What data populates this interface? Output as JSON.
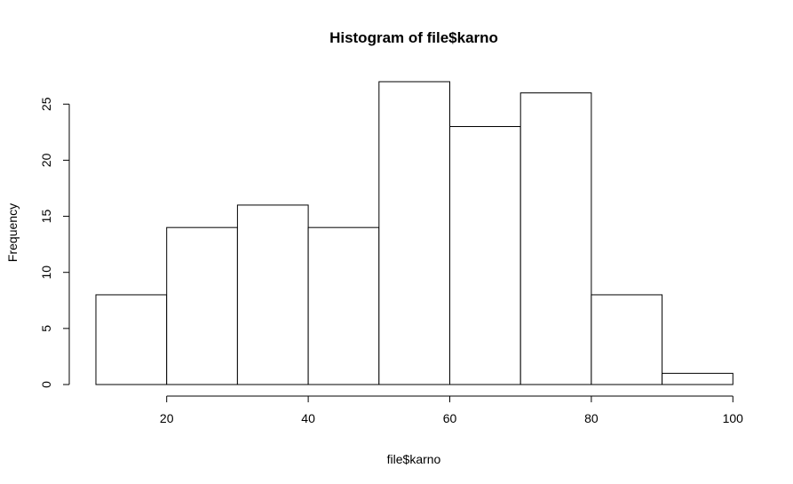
{
  "chart_data": {
    "type": "bar",
    "title": "Histogram of file$karno",
    "xlabel": "file$karno",
    "ylabel": "Frequency",
    "bins": [
      [
        10,
        20
      ],
      [
        20,
        30
      ],
      [
        30,
        40
      ],
      [
        40,
        50
      ],
      [
        50,
        60
      ],
      [
        60,
        70
      ],
      [
        70,
        80
      ],
      [
        80,
        90
      ],
      [
        90,
        100
      ]
    ],
    "values": [
      8,
      14,
      16,
      14,
      27,
      23,
      26,
      8,
      1
    ],
    "xlim": [
      10,
      100
    ],
    "ylim": [
      0,
      27
    ],
    "x_ticks": [
      20,
      40,
      60,
      80,
      100
    ],
    "y_ticks": [
      0,
      5,
      10,
      15,
      20,
      25
    ],
    "grid": false,
    "legend": "none",
    "colors": {
      "bar_fill": "#ffffff",
      "bar_stroke": "#000000"
    }
  }
}
